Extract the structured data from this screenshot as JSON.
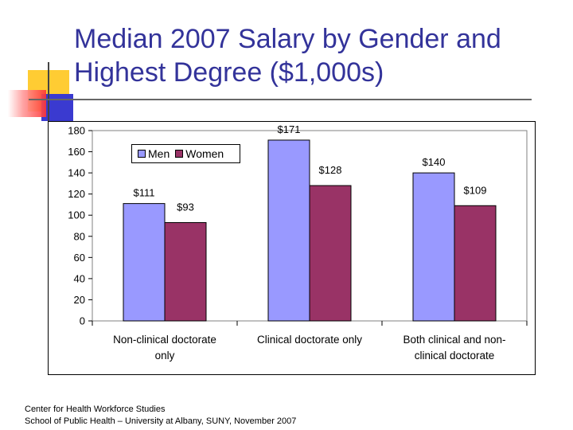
{
  "slide": {
    "title": "Median 2007 Salary by Gender and Highest Degree ($1,000s)",
    "footer_line1": "Center for Health Workforce Studies",
    "footer_line2": "School of Public Health – University at Albany, SUNY, November 2007"
  },
  "colors": {
    "title": "#33339a",
    "men": "#9999ff",
    "women": "#993366",
    "deco_yellow": "#ffcc33",
    "deco_blue": "#3333cc",
    "deco_red": "#ff3333"
  },
  "chart_data": {
    "type": "bar",
    "categories": [
      [
        "Non-clinical doctorate",
        "only"
      ],
      [
        "Clinical doctorate only"
      ],
      [
        "Both clinical and non-",
        "clinical doctorate"
      ]
    ],
    "series": [
      {
        "name": "Men",
        "values": [
          111,
          171,
          140
        ],
        "labels": [
          "$111",
          "$171",
          "$140"
        ]
      },
      {
        "name": "Women",
        "values": [
          93,
          128,
          109
        ],
        "labels": [
          "$93",
          "$128",
          "$109"
        ]
      }
    ],
    "ylim": [
      0,
      180
    ],
    "yticks": [
      0,
      20,
      40,
      60,
      80,
      100,
      120,
      140,
      160,
      180
    ],
    "grid": false,
    "legend_position": "top-left"
  }
}
